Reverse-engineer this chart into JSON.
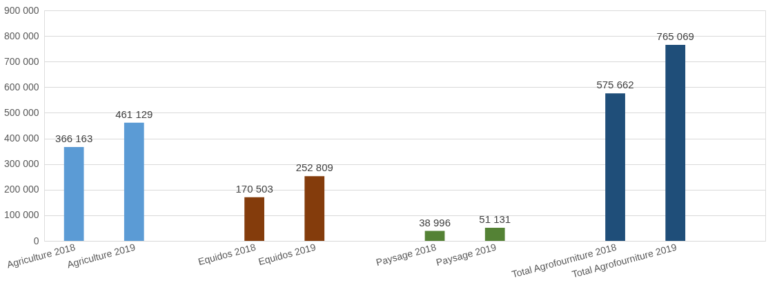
{
  "chart_data": {
    "type": "bar",
    "categories": [
      "Agriculture 2018",
      "Agriculture 2019",
      null,
      "Equidos 2018",
      "Equidos 2019",
      null,
      "Paysage 2018",
      "Paysage 2019",
      null,
      "Total Agrofourniture 2018",
      "Total Agrofourniture 2019",
      null
    ],
    "values": [
      366163,
      461129,
      null,
      170503,
      252809,
      null,
      38996,
      51131,
      null,
      575662,
      765069,
      null
    ],
    "colors": [
      "#5b9bd5",
      "#5b9bd5",
      null,
      "#843c0c",
      "#843c0c",
      null,
      "#548235",
      "#548235",
      null,
      "#1f4e79",
      "#1f4e79",
      null
    ],
    "value_labels": [
      "366 163",
      "461 129",
      null,
      "170 503",
      "252 809",
      null,
      "38 996",
      "51 131",
      null,
      "575 662",
      "765 069",
      null
    ],
    "ylim": [
      0,
      900000
    ],
    "yticks": [
      {
        "value": 0,
        "label": "0"
      },
      {
        "value": 100000,
        "label": "100 000"
      },
      {
        "value": 200000,
        "label": "200 000"
      },
      {
        "value": 300000,
        "label": "300 000"
      },
      {
        "value": 400000,
        "label": "400 000"
      },
      {
        "value": 500000,
        "label": "500 000"
      },
      {
        "value": 600000,
        "label": "600 000"
      },
      {
        "value": 700000,
        "label": "700 000"
      },
      {
        "value": 800000,
        "label": "800 000"
      },
      {
        "value": 900000,
        "label": "900 000"
      }
    ],
    "grid": "y"
  }
}
